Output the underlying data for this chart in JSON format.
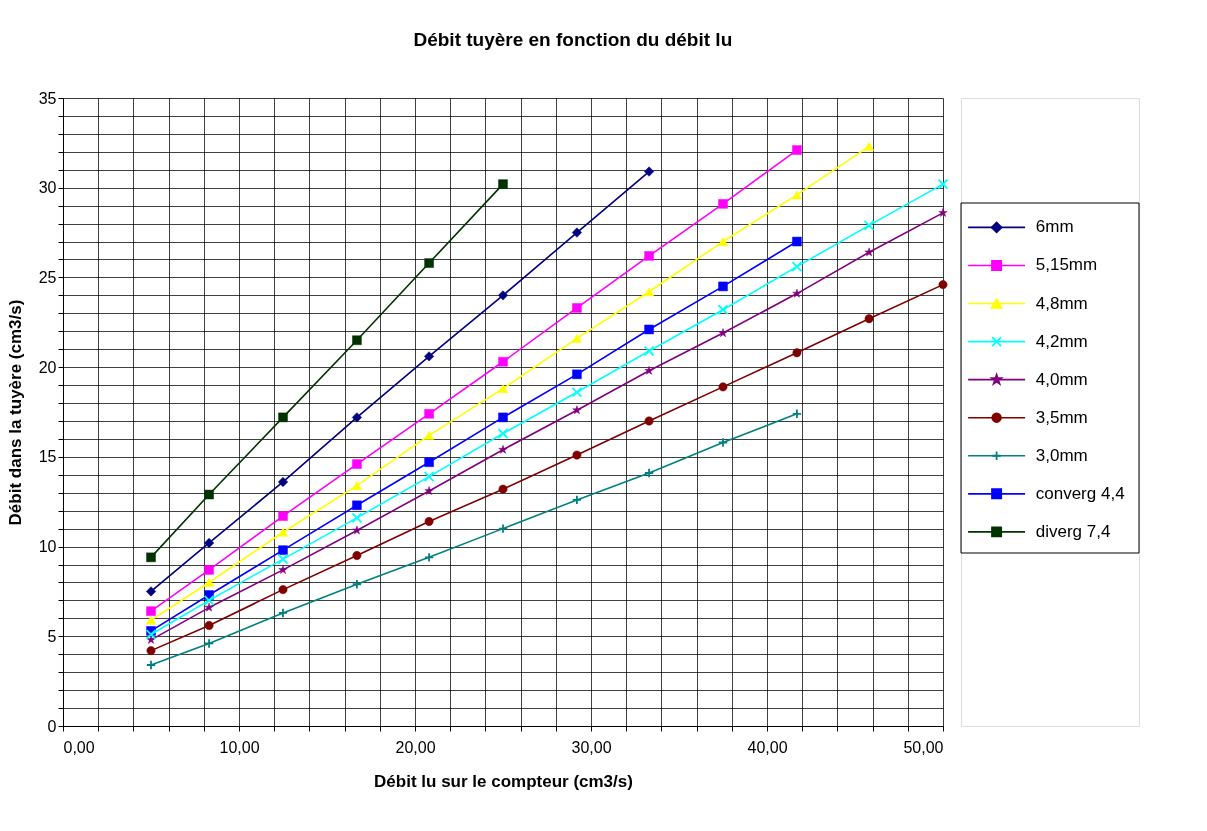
{
  "chart_data": {
    "type": "line",
    "title": "Débit tuyère en fonction du débit lu",
    "xlabel": "Débit lu sur le compteur (cm3/s)",
    "ylabel": "Débit dans la tuyère (cm3/s)",
    "series": [
      {
        "name": "6mm",
        "color": "#000080",
        "marker": "diamond",
        "x": [
          5.0,
          8.3,
          12.5,
          16.7,
          20.8,
          25.0,
          29.2,
          33.3
        ],
        "values": [
          7.5,
          10.2,
          13.6,
          17.2,
          20.6,
          24.0,
          27.5,
          30.9
        ]
      },
      {
        "name": "5,15mm",
        "color": "#ff00ff",
        "marker": "square",
        "x": [
          5.0,
          8.3,
          12.5,
          16.7,
          20.8,
          25.0,
          29.2,
          33.3,
          37.5,
          41.7
        ],
        "values": [
          6.4,
          8.7,
          11.7,
          14.6,
          17.4,
          20.3,
          23.3,
          26.2,
          29.1,
          32.1
        ]
      },
      {
        "name": "4,8mm",
        "color": "#ffff00",
        "marker": "triangle",
        "x": [
          5.0,
          8.3,
          12.5,
          16.7,
          20.8,
          25.0,
          29.2,
          33.3,
          37.5,
          41.7,
          45.8
        ],
        "values": [
          5.9,
          8.0,
          10.8,
          13.4,
          16.2,
          18.8,
          21.6,
          24.2,
          27.0,
          29.6,
          32.3
        ]
      },
      {
        "name": "4,2mm",
        "color": "#00ffff",
        "marker": "x",
        "x": [
          5.0,
          8.3,
          12.5,
          16.7,
          20.8,
          25.0,
          29.2,
          33.3,
          37.5,
          41.7,
          45.8,
          50.0
        ],
        "values": [
          5.1,
          7.0,
          9.3,
          11.6,
          13.9,
          16.3,
          18.6,
          20.9,
          23.2,
          25.6,
          27.9,
          30.2
        ]
      },
      {
        "name": "4,0mm",
        "color": "#800080",
        "marker": "star",
        "x": [
          5.0,
          8.3,
          12.5,
          16.7,
          20.8,
          25.0,
          29.2,
          33.3,
          37.5,
          41.7,
          45.8,
          50.0
        ],
        "values": [
          4.8,
          6.6,
          8.7,
          10.9,
          13.1,
          15.4,
          17.6,
          19.8,
          21.9,
          24.1,
          26.4,
          28.6
        ]
      },
      {
        "name": "3,5mm",
        "color": "#800000",
        "marker": "circle",
        "x": [
          5.0,
          8.3,
          12.5,
          16.7,
          20.8,
          25.0,
          29.2,
          33.3,
          37.5,
          41.7,
          45.8,
          50.0
        ],
        "values": [
          4.2,
          5.6,
          7.6,
          9.5,
          11.4,
          13.2,
          15.1,
          17.0,
          18.9,
          20.8,
          22.7,
          24.6
        ]
      },
      {
        "name": "3,0mm",
        "color": "#008080",
        "marker": "cross",
        "x": [
          5.0,
          8.3,
          12.5,
          16.7,
          20.8,
          25.0,
          29.2,
          33.3,
          37.5,
          41.7
        ],
        "values": [
          3.4,
          4.6,
          6.3,
          7.9,
          9.4,
          11.0,
          12.6,
          14.1,
          15.8,
          17.4
        ]
      },
      {
        "name": "converg 4,4",
        "color": "#0000ff",
        "marker": "square",
        "x": [
          5.0,
          8.3,
          12.5,
          16.7,
          20.8,
          25.0,
          29.2,
          33.3,
          37.5,
          41.7
        ],
        "values": [
          5.3,
          7.3,
          9.8,
          12.3,
          14.7,
          17.2,
          19.6,
          22.1,
          24.5,
          27.0
        ]
      },
      {
        "name": "diverg 7,4",
        "color": "#003300",
        "marker": "square",
        "x": [
          5.0,
          8.3,
          12.5,
          16.7,
          20.8,
          25.0
        ],
        "values": [
          9.4,
          12.9,
          17.2,
          21.5,
          25.8,
          30.2
        ]
      }
    ],
    "xlim": [
      0,
      50
    ],
    "ylim": [
      0,
      35
    ],
    "xticks": [
      {
        "value": 0,
        "label": "0,00"
      },
      {
        "value": 2,
        "label": null
      },
      {
        "value": 4,
        "label": null
      },
      {
        "value": 6,
        "label": null
      },
      {
        "value": 8,
        "label": null
      },
      {
        "value": 10,
        "label": "10,00"
      },
      {
        "value": 12,
        "label": null
      },
      {
        "value": 14,
        "label": null
      },
      {
        "value": 16,
        "label": null
      },
      {
        "value": 18,
        "label": null
      },
      {
        "value": 20,
        "label": "20,00"
      },
      {
        "value": 22,
        "label": null
      },
      {
        "value": 24,
        "label": null
      },
      {
        "value": 26,
        "label": null
      },
      {
        "value": 28,
        "label": null
      },
      {
        "value": 30,
        "label": "30,00"
      },
      {
        "value": 32,
        "label": null
      },
      {
        "value": 34,
        "label": null
      },
      {
        "value": 36,
        "label": null
      },
      {
        "value": 38,
        "label": null
      },
      {
        "value": 40,
        "label": "40,00"
      },
      {
        "value": 42,
        "label": null
      },
      {
        "value": 44,
        "label": null
      },
      {
        "value": 46,
        "label": null
      },
      {
        "value": 48,
        "label": null
      },
      {
        "value": 50,
        "label": "50,00"
      }
    ],
    "yticks": [
      0,
      {
        "value": 1,
        "label": null
      },
      {
        "value": 2,
        "label": null
      },
      {
        "value": 3,
        "label": null
      },
      {
        "value": 4,
        "label": null
      },
      5,
      {
        "value": 6,
        "label": null
      },
      {
        "value": 7,
        "label": null
      },
      {
        "value": 8,
        "label": null
      },
      {
        "value": 9,
        "label": null
      },
      10,
      {
        "value": 11,
        "label": null
      },
      {
        "value": 12,
        "label": null
      },
      {
        "value": 13,
        "label": null
      },
      {
        "value": 14,
        "label": null
      },
      15,
      {
        "value": 16,
        "label": null
      },
      {
        "value": 17,
        "label": null
      },
      {
        "value": 18,
        "label": null
      },
      {
        "value": 19,
        "label": null
      },
      20,
      {
        "value": 21,
        "label": null
      },
      {
        "value": 22,
        "label": null
      },
      {
        "value": 23,
        "label": null
      },
      {
        "value": 24,
        "label": null
      },
      25,
      {
        "value": 26,
        "label": null
      },
      {
        "value": 27,
        "label": null
      },
      {
        "value": 28,
        "label": null
      },
      {
        "value": 29,
        "label": null
      },
      30,
      {
        "value": 31,
        "label": null
      },
      {
        "value": 32,
        "label": null
      },
      {
        "value": 33,
        "label": null
      },
      {
        "value": 34,
        "label": null
      },
      35
    ],
    "grid": true,
    "legend": "right"
  }
}
